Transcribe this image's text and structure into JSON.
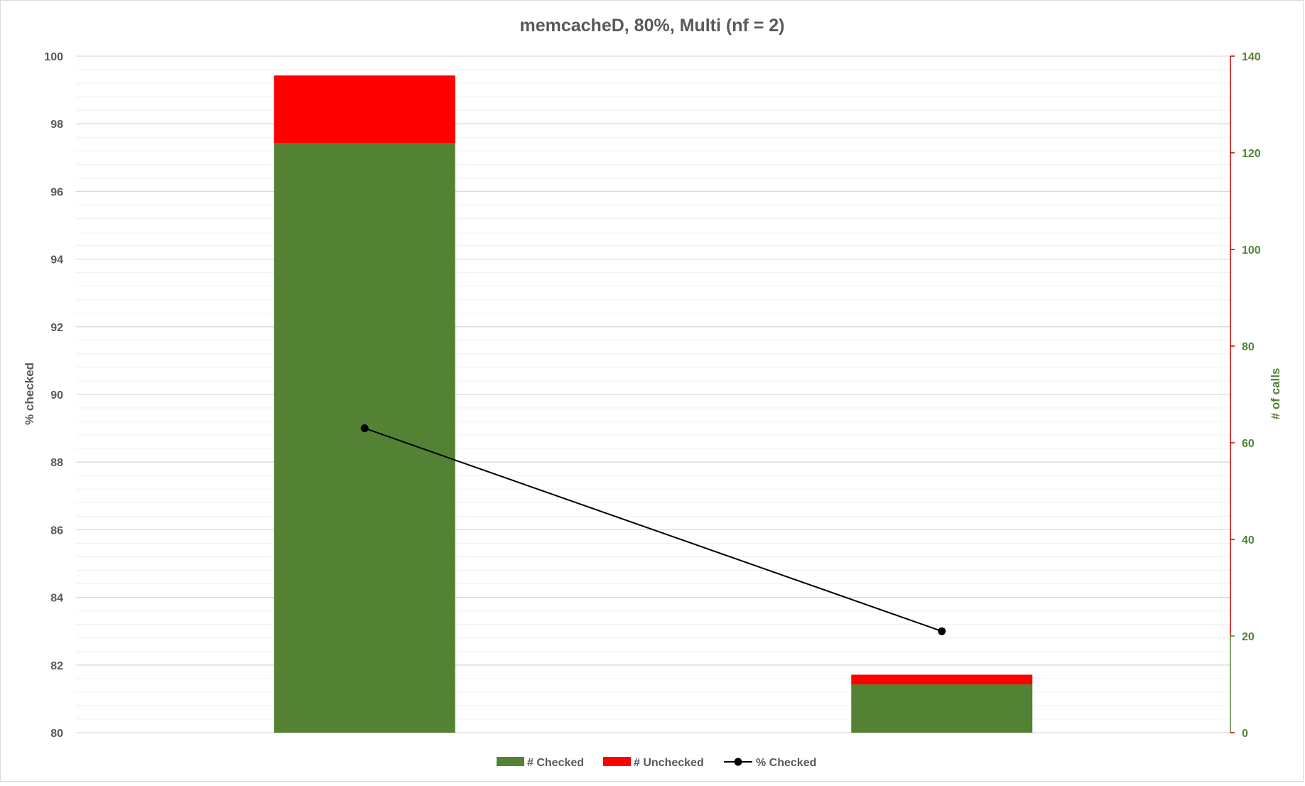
{
  "chart_data": {
    "type": "bar",
    "stacked": true,
    "title": "memcacheD, 80%, Multi (nf = 2)",
    "xlabel": "",
    "categories": [
      "",
      ""
    ],
    "y_left": {
      "label": "% checked",
      "range": [
        80,
        100
      ],
      "major_ticks": [
        80,
        82,
        84,
        86,
        88,
        90,
        92,
        94,
        96,
        98,
        100
      ],
      "minor_step": 0.4
    },
    "y_right": {
      "label": "# of calls",
      "range": [
        0,
        140
      ],
      "major_ticks": [
        0,
        20,
        40,
        60,
        80,
        100,
        120,
        140
      ]
    },
    "series": [
      {
        "name": "# Checked",
        "type": "bar",
        "axis": "right",
        "color": "#548235",
        "values": [
          122,
          10
        ]
      },
      {
        "name": "# Unchecked",
        "type": "bar",
        "axis": "right",
        "color": "#ff0000",
        "values": [
          14,
          2
        ]
      },
      {
        "name": "% Checked",
        "type": "line",
        "axis": "left",
        "color": "#000000",
        "values": [
          89.0,
          83.0
        ]
      }
    ],
    "grid": true,
    "legend_position": "bottom",
    "colors": {
      "left_axis_text": "#595959",
      "right_axis_text": "#548235",
      "right_axis_line_top": "#c00000",
      "right_axis_line_bottom": "#548235",
      "grid": "#d9d9d9"
    }
  }
}
